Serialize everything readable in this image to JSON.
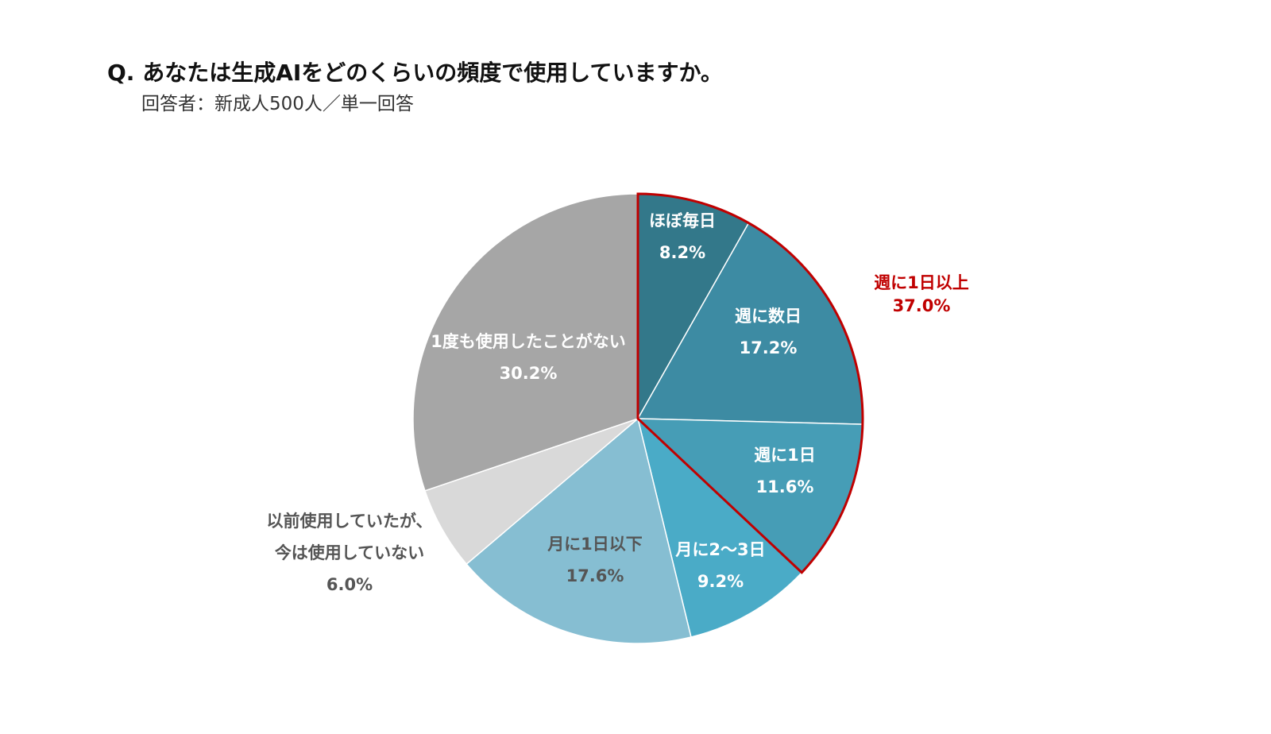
{
  "title": "Q. あなたは生成AIをどのくらいの頻度で使用していますか。",
  "subtitle": "回答者：新成人500人／単一回答",
  "chart_data": {
    "type": "pie",
    "slices": [
      {
        "label": "ほぼ毎日",
        "value": 8.2,
        "value_label": "8.2%",
        "color": "#33788a",
        "text_color": "#ffffff"
      },
      {
        "label": "週に数日",
        "value": 17.2,
        "value_label": "17.2%",
        "color": "#3d8ba3",
        "text_color": "#ffffff"
      },
      {
        "label": "週に1日",
        "value": 11.6,
        "value_label": "11.6%",
        "color": "#469db6",
        "text_color": "#ffffff"
      },
      {
        "label": "月に2〜3日",
        "value": 9.2,
        "value_label": "9.2%",
        "color": "#4aabc7",
        "text_color": "#ffffff"
      },
      {
        "label": "月に1日以下",
        "value": 17.6,
        "value_label": "17.6%",
        "color": "#86bed2",
        "text_color": "#555555"
      },
      {
        "label": "以前使用していたが、今は使用していない",
        "label_lines": [
          "以前使用していたが、",
          "今は使用していない"
        ],
        "value": 6.0,
        "value_label": "6.0%",
        "color": "#d9d9d9",
        "text_color": "#555555"
      },
      {
        "label": "1度も使用したことがない",
        "value": 30.2,
        "value_label": "30.2%",
        "color": "#a6a6a6",
        "text_color": "#ffffff"
      }
    ],
    "group_highlight": {
      "label": "週に1日以上",
      "value_label": "37.0%",
      "value": 37.0,
      "color": "#c00000",
      "slice_count": 3
    }
  }
}
